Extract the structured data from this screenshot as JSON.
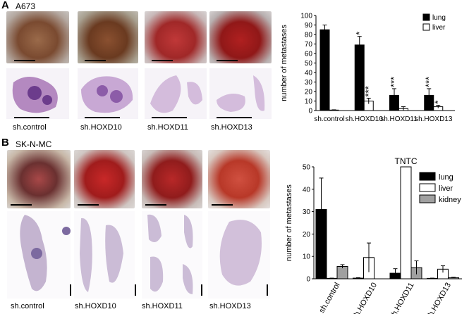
{
  "panel_a": {
    "letter": "A",
    "cell_line": "A673",
    "photo_labels": [
      "sh.control",
      "sh.HOXD10",
      "sh.HOXD11",
      "sh.HOXD13"
    ]
  },
  "panel_b": {
    "letter": "B",
    "cell_line": "SK-N-MC",
    "photo_labels": [
      "sh.control",
      "sh.HOXD10",
      "sh.HOXD11",
      "sh.HOXD13"
    ]
  },
  "chart_data": [
    {
      "type": "bar",
      "categories": [
        "sh.control",
        "sh.HOXD10",
        "sh.HOXD11",
        "sh.HOXD13"
      ],
      "series": [
        {
          "name": "lung",
          "color": "#000000",
          "values": [
            85,
            69,
            16,
            16
          ],
          "errors": [
            5,
            9,
            7,
            7
          ]
        },
        {
          "name": "liver",
          "color": "#ffffff",
          "values": [
            0.5,
            10,
            2,
            4
          ],
          "errors": [
            0.3,
            3,
            2,
            1.5
          ]
        }
      ],
      "significance": [
        {
          "category": 1,
          "series": 0,
          "text": "*"
        },
        {
          "category": 1,
          "series": 1,
          "text": "***"
        },
        {
          "category": 2,
          "series": 0,
          "text": "***"
        },
        {
          "category": 3,
          "series": 0,
          "text": "***"
        },
        {
          "category": 3,
          "series": 1,
          "text": "*"
        }
      ],
      "ylabel": "number of metastases",
      "ylim": [
        0,
        100
      ],
      "yticks": [
        0,
        10,
        20,
        30,
        40,
        50,
        60,
        70,
        80,
        90,
        100
      ],
      "legend_position": "top-right",
      "grid": false
    },
    {
      "type": "bar",
      "categories": [
        "sh.control",
        "sh.HOXD10",
        "sh.HOXD11",
        "sh.HOXD13"
      ],
      "series": [
        {
          "name": "lung",
          "color": "#000000",
          "values": [
            31,
            0.3,
            2.5,
            0.2
          ],
          "errors": [
            14,
            0.2,
            2,
            0.1
          ]
        },
        {
          "name": "liver",
          "color": "#ffffff",
          "values": [
            0.2,
            9.5,
            50,
            4.3
          ],
          "errors": [
            0.1,
            6.5,
            0,
            1.5
          ]
        },
        {
          "name": "kidney",
          "color": "#a0a0a0",
          "values": [
            5.5,
            0,
            5,
            0.5
          ],
          "errors": [
            0.8,
            0,
            3,
            0.2
          ]
        }
      ],
      "annotation": "TNTC",
      "ylabel": "number of metastases",
      "ylim": [
        0,
        50
      ],
      "yticks": [
        0,
        10,
        20,
        30,
        40,
        50
      ],
      "legend_position": "top-right",
      "grid": false
    }
  ]
}
